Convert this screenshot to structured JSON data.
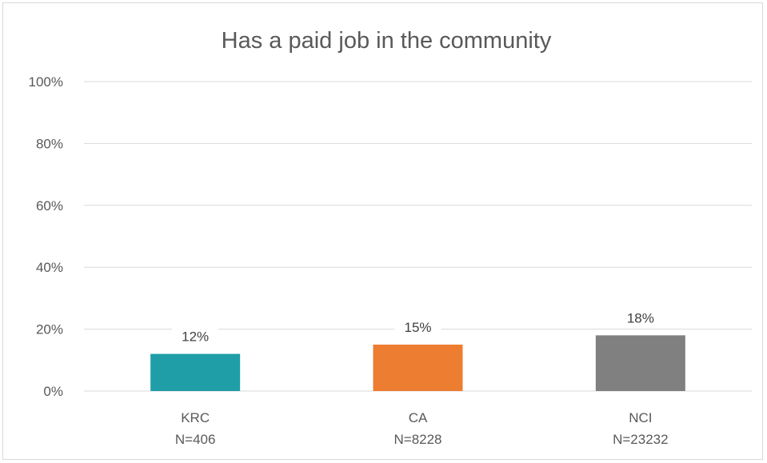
{
  "chart_data": {
    "type": "bar",
    "title": "Has a paid job in the community",
    "categories": [
      {
        "name": "KRC",
        "n": "N=406"
      },
      {
        "name": "CA",
        "n": "N=8228"
      },
      {
        "name": "NCI",
        "n": "N=23232"
      }
    ],
    "values": [
      12,
      15,
      18
    ],
    "value_labels": [
      "12%",
      "15%",
      "18%"
    ],
    "colors": [
      "#1f9ea7",
      "#ed7d31",
      "#808080"
    ],
    "ylim": [
      0,
      100
    ],
    "yticks": [
      0,
      20,
      40,
      60,
      80,
      100
    ],
    "ytick_labels": [
      "0%",
      "20%",
      "40%",
      "60%",
      "80%",
      "100%"
    ],
    "xlabel": "",
    "ylabel": "",
    "grid": true,
    "legend": "none"
  }
}
